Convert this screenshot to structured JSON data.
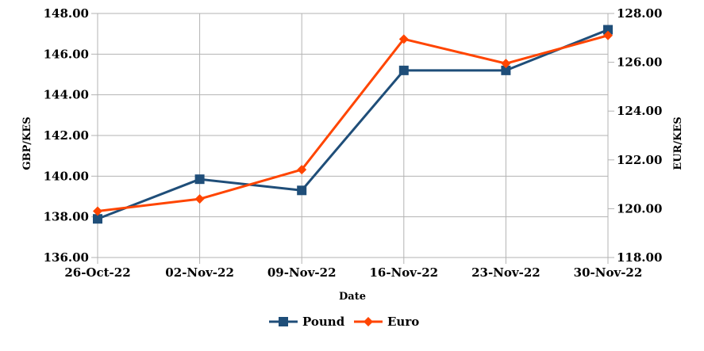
{
  "chart_data": {
    "type": "line",
    "categories": [
      "26-Oct-22",
      "02-Nov-22",
      "09-Nov-22",
      "16-Nov-22",
      "23-Nov-22",
      "30-Nov-22"
    ],
    "xlabel": "Date",
    "ylabel_left": "GBP/KES",
    "ylabel_right": "EUR/KES",
    "ylim_left": [
      136,
      148
    ],
    "ylim_right": [
      118,
      128
    ],
    "yticks_left": [
      "136.00",
      "138.00",
      "140.00",
      "142.00",
      "144.00",
      "146.00",
      "148.00"
    ],
    "yticks_right": [
      "118.00",
      "120.00",
      "122.00",
      "124.00",
      "126.00",
      "128.00"
    ],
    "grid": true,
    "legend_position": "bottom",
    "series": [
      {
        "name": "Pound",
        "axis": "left",
        "color": "#1f4e79",
        "marker": "square",
        "values": [
          137.9,
          139.85,
          139.3,
          145.2,
          145.2,
          147.2
        ]
      },
      {
        "name": "Euro",
        "axis": "right",
        "color": "#ff4500",
        "marker": "diamond",
        "values": [
          119.9,
          120.4,
          121.6,
          126.95,
          125.95,
          127.1
        ]
      }
    ]
  }
}
